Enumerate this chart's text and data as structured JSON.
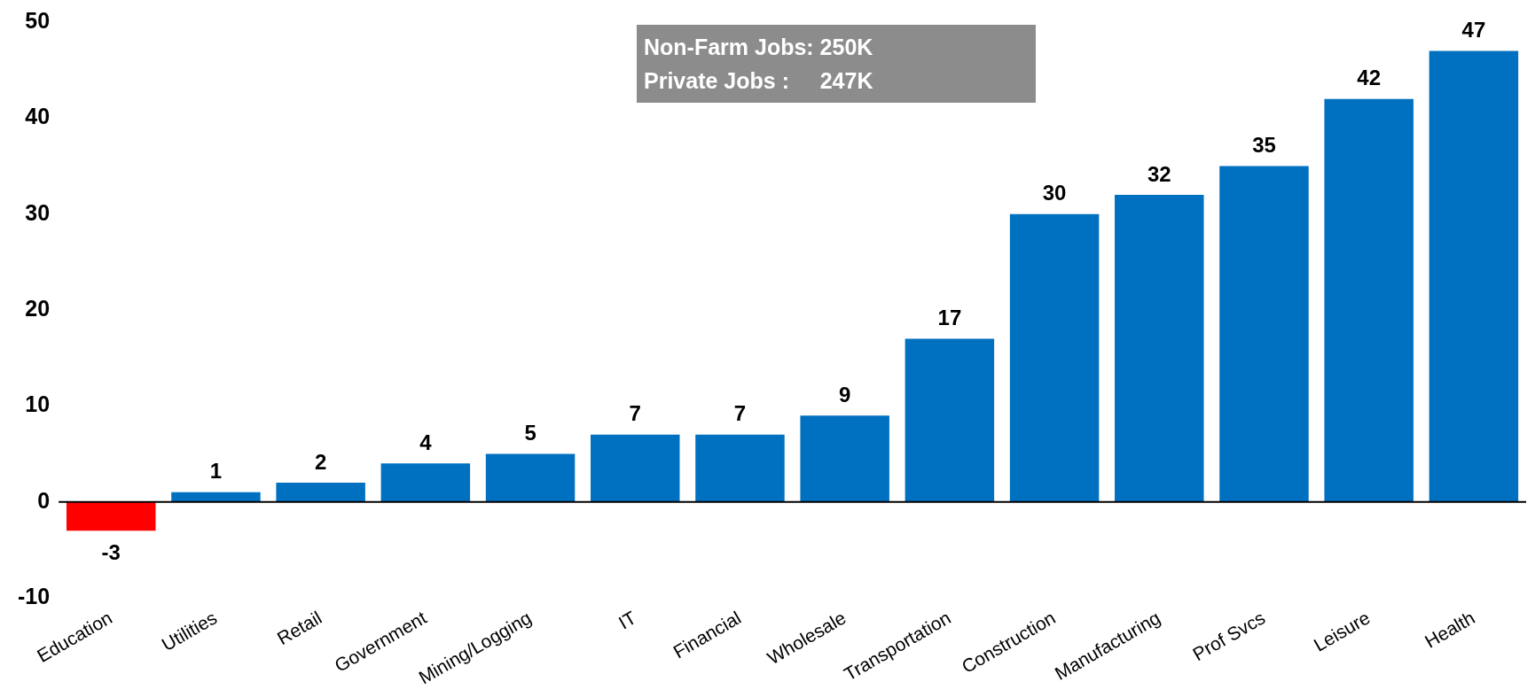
{
  "chart_data": {
    "type": "bar",
    "categories": [
      "Education",
      "Utilities",
      "Retail",
      "Government",
      "Mining/Logging",
      "IT",
      "Financial",
      "Wholesale",
      "Transportation",
      "Construction",
      "Manufacturing",
      "Prof Svcs",
      "Leisure",
      "Health"
    ],
    "values": [
      -3,
      1,
      2,
      4,
      5,
      7,
      7,
      9,
      17,
      30,
      32,
      35,
      42,
      47
    ],
    "colors": [
      "#ff0000",
      "#0070c0",
      "#0070c0",
      "#0070c0",
      "#0070c0",
      "#0070c0",
      "#0070c0",
      "#0070c0",
      "#0070c0",
      "#0070c0",
      "#0070c0",
      "#0070c0",
      "#0070c0",
      "#0070c0"
    ],
    "ylim": [
      -10,
      50
    ],
    "yticks": [
      -10,
      0,
      10,
      20,
      30,
      40,
      50
    ],
    "data_labels": true,
    "ref_lines": [
      {
        "axis": "y",
        "value": 0,
        "color": "#000000"
      }
    ],
    "annotations": [
      "Non-Farm Jobs: 250K",
      "Private Jobs :     247K"
    ]
  }
}
